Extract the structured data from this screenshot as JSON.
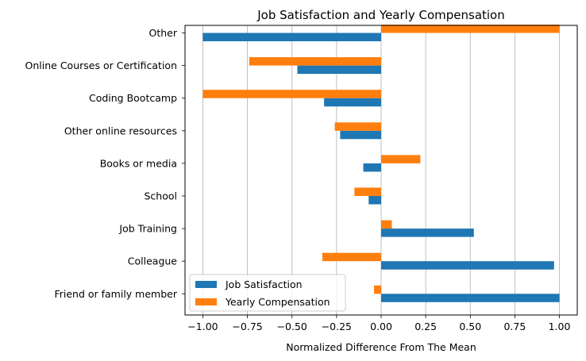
{
  "chart_data": {
    "type": "bar",
    "orientation": "horizontal",
    "title": "Job Satisfaction and Yearly Compensation",
    "xlabel": "Normalized Difference From The Mean",
    "ylabel": "",
    "xlim": [
      -1.1,
      1.1
    ],
    "xticks": [
      -1.0,
      -0.75,
      -0.5,
      -0.25,
      0.0,
      0.25,
      0.5,
      0.75,
      1.0
    ],
    "xtick_labels": [
      "−1.00",
      "−0.75",
      "−0.50",
      "−0.25",
      "0.00",
      "0.25",
      "0.50",
      "0.75",
      "1.00"
    ],
    "grid": "vertical",
    "legend_position": "lower-left",
    "categories": [
      "Friend or family member",
      "Colleague",
      "Job Training",
      "School",
      "Books or media",
      "Other online resources",
      "Coding Bootcamp",
      "Online Courses or Certification",
      "Other"
    ],
    "series": [
      {
        "name": "Job Satisfaction",
        "color": "#1f77b4",
        "values": [
          1.0,
          0.97,
          0.52,
          -0.07,
          -0.1,
          -0.23,
          -0.32,
          -0.47,
          -1.0
        ]
      },
      {
        "name": "Yearly Compensation",
        "color": "#ff7f0e",
        "values": [
          -0.04,
          -0.33,
          0.06,
          -0.15,
          0.22,
          -0.26,
          -1.0,
          -0.74,
          1.0
        ]
      }
    ]
  }
}
